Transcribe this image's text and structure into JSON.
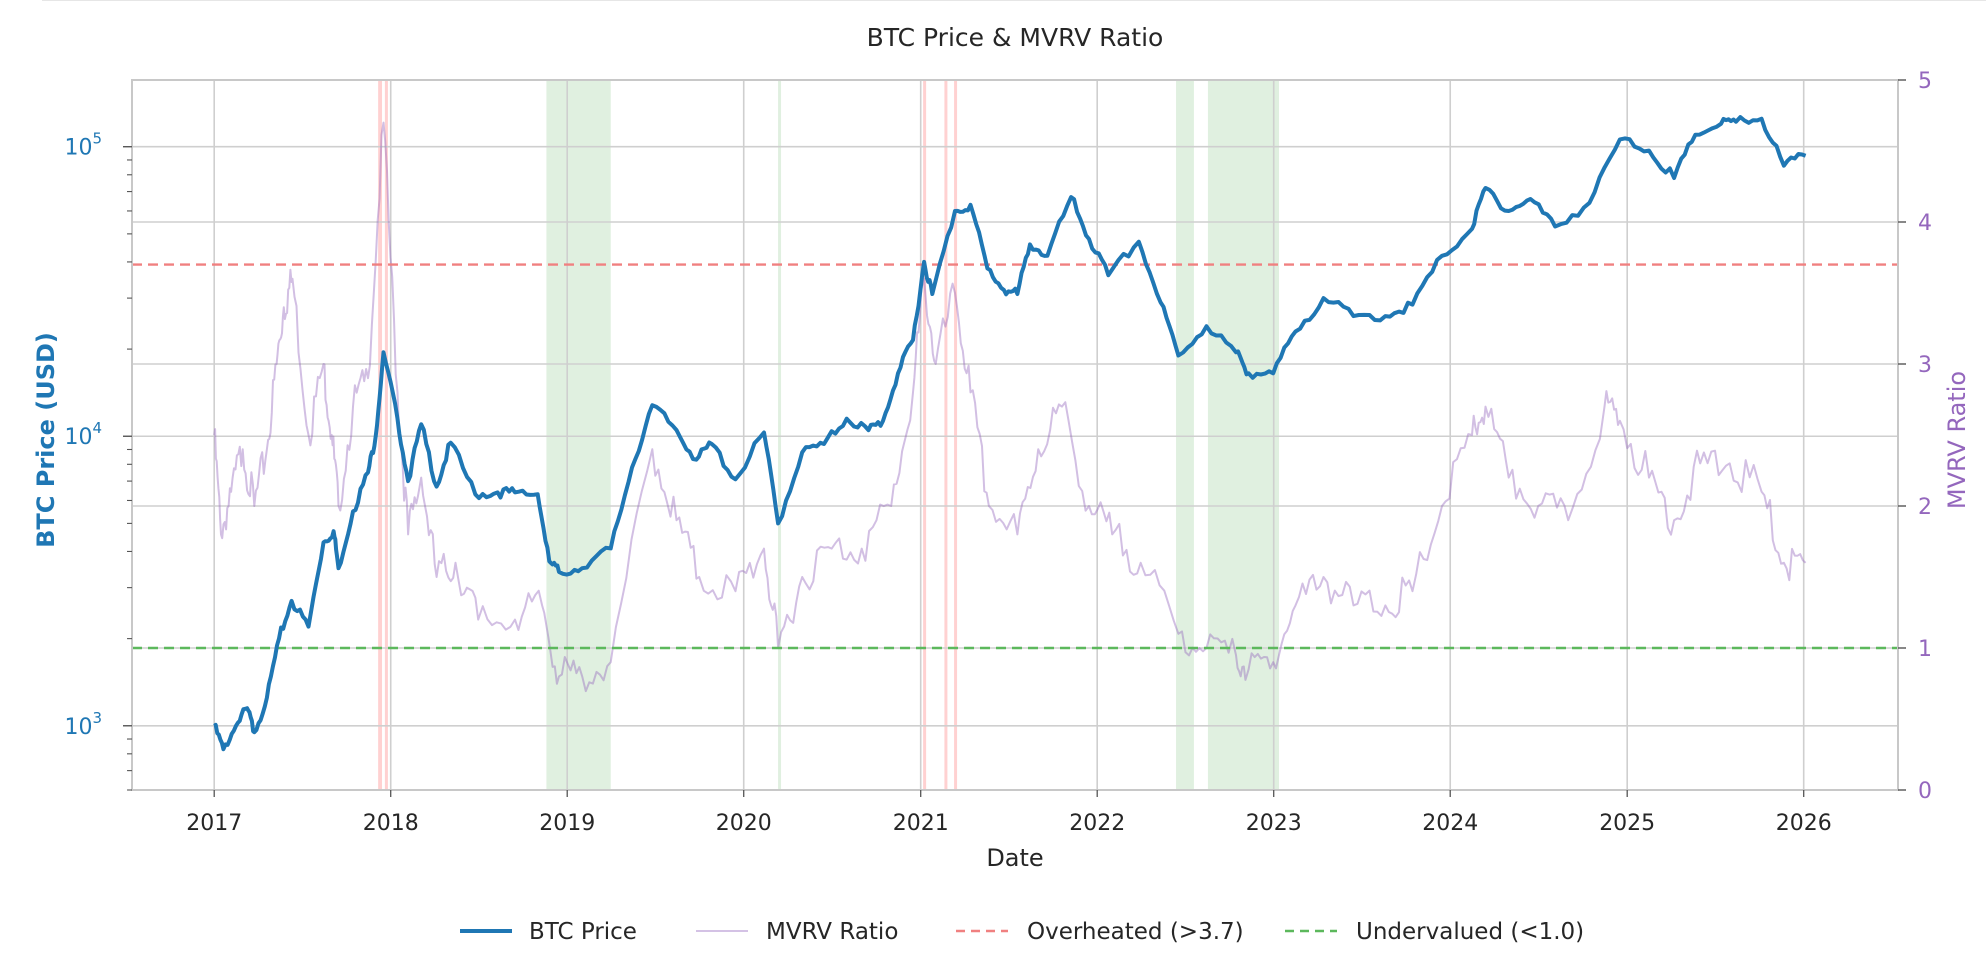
{
  "chart_data": {
    "type": "line",
    "title": "BTC Price & MVRV Ratio",
    "xlabel": "Date",
    "ylabel_left": "BTC Price (USD)",
    "ylabel_right": "MVRV Ratio",
    "x_ticks": [
      "2017",
      "2018",
      "2019",
      "2020",
      "2021",
      "2022",
      "2023",
      "2024",
      "2025",
      "2026"
    ],
    "y_left_scale": "log",
    "y_left_ticks": [
      {
        "base": "10",
        "exp": "3",
        "value": 1000
      },
      {
        "base": "10",
        "exp": "4",
        "value": 10000
      },
      {
        "base": "10",
        "exp": "5",
        "value": 100000
      }
    ],
    "y_left_range": [
      600,
      170000
    ],
    "y_right_ticks": [
      "0",
      "1",
      "2",
      "3",
      "4",
      "5"
    ],
    "y_right_range": [
      0,
      5
    ],
    "x_range": [
      "2016-07-15",
      "2026-07-15"
    ],
    "grid": true,
    "legend_position": "bottom-center",
    "colors": {
      "price": "#1f77b4",
      "mvrv": "#9467bd",
      "overheated": "#f08080",
      "undervalued": "#5cb85c",
      "over_span": "#ffcccc",
      "under_span": "#d8ecd8"
    },
    "thresholds": [
      {
        "name": "Overheated (>3.7)",
        "value": 3.7
      },
      {
        "name": "Undervalued (<1.0)",
        "value": 1.0
      }
    ],
    "overheated_spans": [
      [
        "2017-12-06",
        "2017-12-14"
      ],
      [
        "2017-12-20",
        "2017-12-24"
      ],
      [
        "2021-01-06",
        "2021-01-09"
      ],
      [
        "2021-02-19",
        "2021-02-21"
      ],
      [
        "2021-03-11",
        "2021-03-13"
      ]
    ],
    "undervalued_spans": [
      [
        "2018-11-19",
        "2019-04-01"
      ],
      [
        "2020-03-12",
        "2020-03-17"
      ],
      [
        "2022-06-13",
        "2022-07-20"
      ],
      [
        "2022-08-18",
        "2023-01-12"
      ]
    ],
    "series": [
      {
        "name": "BTC Price",
        "axis": "left",
        "x": [
          "2017-01-01",
          "2017-01-20",
          "2017-02-15",
          "2017-03-10",
          "2017-03-25",
          "2017-04-20",
          "2017-05-15",
          "2017-06-10",
          "2017-07-15",
          "2017-08-15",
          "2017-09-05",
          "2017-09-15",
          "2017-10-15",
          "2017-11-15",
          "2017-12-01",
          "2017-12-17",
          "2018-01-15",
          "2018-02-06",
          "2018-03-05",
          "2018-04-06",
          "2018-05-05",
          "2018-06-25",
          "2018-08-10",
          "2018-09-15",
          "2018-11-01",
          "2018-11-25",
          "2018-12-15",
          "2019-02-01",
          "2019-04-01",
          "2019-05-15",
          "2019-06-26",
          "2019-08-15",
          "2019-09-25",
          "2019-10-27",
          "2019-12-15",
          "2020-02-12",
          "2020-03-12",
          "2020-05-01",
          "2020-06-15",
          "2020-08-01",
          "2020-09-15",
          "2020-10-15",
          "2020-11-15",
          "2020-12-16",
          "2021-01-08",
          "2021-01-25",
          "2021-03-13",
          "2021-04-14",
          "2021-05-19",
          "2021-06-22",
          "2021-07-20",
          "2021-08-15",
          "2021-09-20",
          "2021-11-08",
          "2021-12-15",
          "2022-01-24",
          "2022-03-28",
          "2022-05-12",
          "2022-06-18",
          "2022-08-15",
          "2022-10-15",
          "2022-11-10",
          "2022-12-31",
          "2023-02-15",
          "2023-04-14",
          "2023-06-15",
          "2023-08-20",
          "2023-10-15",
          "2023-12-15",
          "2024-02-15",
          "2024-03-14",
          "2024-05-01",
          "2024-06-15",
          "2024-08-05",
          "2024-10-15",
          "2024-12-17",
          "2025-02-15",
          "2025-04-08",
          "2025-05-22",
          "2025-07-14",
          "2025-08-14",
          "2025-10-06",
          "2025-11-21",
          "2026-01-05"
        ],
        "values": [
          1000,
          830,
          1000,
          1150,
          950,
          1250,
          2000,
          2700,
          2200,
          4300,
          4700,
          3500,
          5500,
          7500,
          10000,
          19500,
          11500,
          7000,
          11000,
          6700,
          9500,
          6300,
          6400,
          6400,
          6300,
          3700,
          3400,
          3500,
          4100,
          7800,
          12800,
          10500,
          8300,
          9400,
          7100,
          10300,
          5000,
          8800,
          9400,
          11500,
          10500,
          11300,
          16500,
          21500,
          40000,
          31000,
          60000,
          63000,
          38000,
          32000,
          31000,
          46000,
          42000,
          67000,
          48000,
          36000,
          47000,
          29000,
          19000,
          24000,
          19500,
          16500,
          16500,
          23000,
          30000,
          26000,
          26000,
          28500,
          42000,
          52000,
          72000,
          60000,
          66000,
          53000,
          64000,
          106000,
          97000,
          78000,
          110000,
          120000,
          122000,
          125000,
          86000,
          93000
        ]
      },
      {
        "name": "MVRV Ratio",
        "axis": "right",
        "x": [
          "2017-01-01",
          "2017-01-15",
          "2017-02-05",
          "2017-03-01",
          "2017-03-25",
          "2017-04-20",
          "2017-05-10",
          "2017-05-25",
          "2017-06-12",
          "2017-07-15",
          "2017-08-15",
          "2017-09-01",
          "2017-09-15",
          "2017-10-15",
          "2017-11-15",
          "2017-12-17",
          "2018-01-15",
          "2018-02-06",
          "2018-03-05",
          "2018-04-06",
          "2018-05-15",
          "2018-07-01",
          "2018-09-15",
          "2018-11-10",
          "2018-12-15",
          "2019-02-01",
          "2019-04-01",
          "2019-06-26",
          "2019-08-15",
          "2019-10-01",
          "2019-12-15",
          "2020-02-12",
          "2020-03-12",
          "2020-05-01",
          "2020-07-01",
          "2020-09-01",
          "2020-11-01",
          "2020-12-16",
          "2021-01-08",
          "2021-02-01",
          "2021-03-13",
          "2021-04-14",
          "2021-05-22",
          "2021-07-20",
          "2021-09-01",
          "2021-10-20",
          "2021-12-15",
          "2022-02-01",
          "2022-04-01",
          "2022-06-18",
          "2022-08-15",
          "2022-10-15",
          "2022-11-10",
          "2022-12-31",
          "2023-02-15",
          "2023-04-14",
          "2023-06-15",
          "2023-08-20",
          "2023-10-15",
          "2023-12-15",
          "2024-02-15",
          "2024-03-14",
          "2024-05-01",
          "2024-07-01",
          "2024-09-01",
          "2024-11-15",
          "2024-12-17",
          "2025-02-15",
          "2025-04-08",
          "2025-06-01",
          "2025-08-01",
          "2025-10-06",
          "2025-11-21",
          "2026-01-05"
        ],
        "values": [
          2.5,
          1.8,
          2.1,
          2.4,
          2.0,
          2.4,
          3.0,
          3.4,
          3.6,
          2.5,
          3.0,
          2.5,
          2.0,
          2.7,
          2.9,
          4.7,
          2.8,
          1.8,
          2.2,
          1.5,
          1.6,
          1.2,
          1.2,
          1.3,
          0.8,
          0.8,
          0.9,
          2.4,
          1.9,
          1.5,
          1.4,
          1.7,
          1.0,
          1.5,
          1.7,
          1.7,
          2.0,
          2.8,
          3.6,
          3.0,
          3.5,
          2.8,
          2.0,
          1.8,
          2.4,
          2.7,
          2.0,
          1.8,
          1.6,
          1.1,
          1.0,
          0.95,
          0.85,
          0.9,
          1.3,
          1.5,
          1.3,
          1.3,
          1.4,
          2.0,
          2.5,
          2.7,
          2.2,
          2.0,
          1.9,
          2.7,
          2.6,
          2.2,
          1.9,
          2.3,
          2.3,
          2.1,
          1.6,
          1.6
        ]
      }
    ]
  }
}
